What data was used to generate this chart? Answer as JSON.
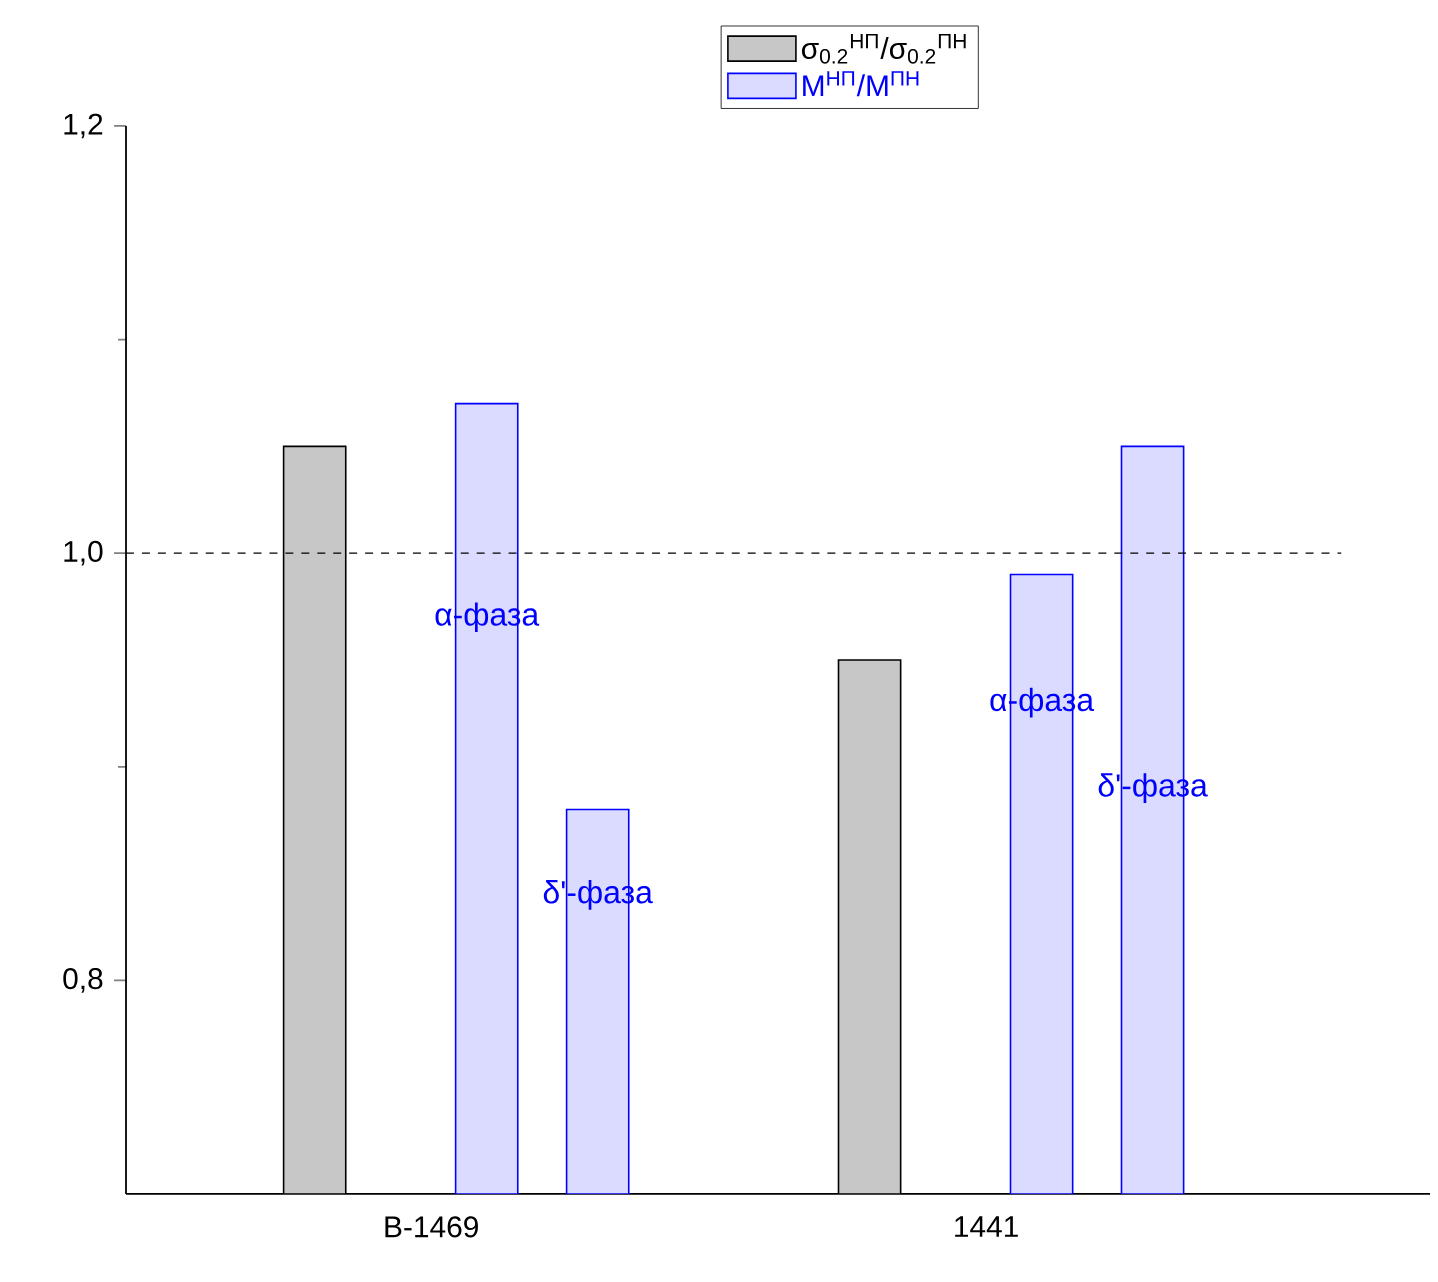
{
  "chart_data": {
    "type": "bar",
    "categories": [
      "B-1469",
      "1441"
    ],
    "series": [
      {
        "name": "σ$_{0.2}$$^{НП}$/σ$_{0.2}$$^{ПН}$",
        "color": "#000000",
        "values": [
          1.05,
          0.95
        ]
      },
      {
        "name": "M$^{НП}$/M$^{ПН}$",
        "color": "#0000ff",
        "values": [
          1.07,
          0.99
        ]
      },
      {
        "color": "#0000ff",
        "values": [
          0.88,
          1.05
        ]
      }
    ],
    "ylim": [
      0.7,
      1.2
    ],
    "yticks": [
      {
        "value": 0.8,
        "label": "0,8"
      },
      {
        "value": 1.0,
        "label": "1,0"
      },
      {
        "value": 1.2,
        "label": "1,2"
      }
    ],
    "ref_lines": [
      {
        "axis": "y",
        "value": 1.0,
        "line_style": "dashed",
        "color": "#000000"
      }
    ],
    "annotations": [
      "α-фаза",
      "δ'-фаза",
      "α-фаза",
      "δ'-фаза"
    ],
    "grid": false,
    "legend": "top"
  }
}
